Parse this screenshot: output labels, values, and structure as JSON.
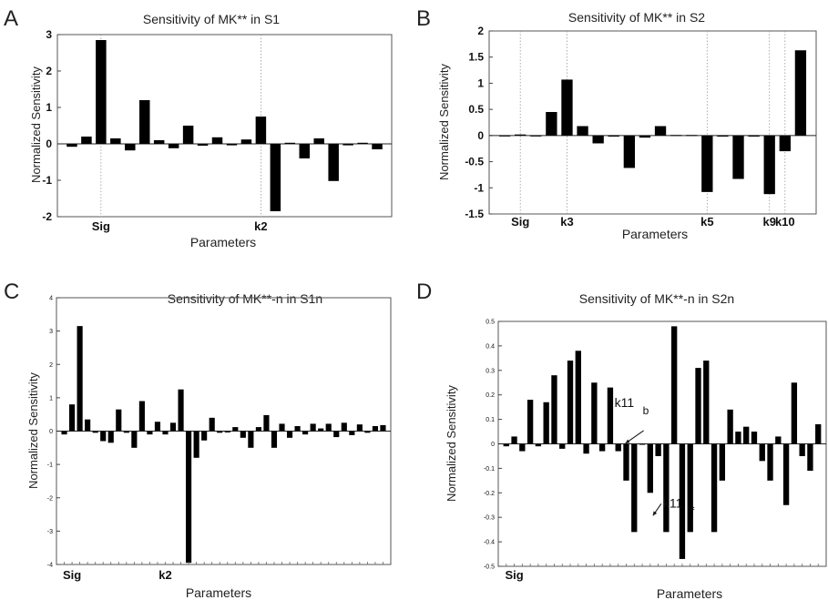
{
  "chart_data": [
    {
      "panel": "A",
      "type": "bar",
      "title": "Sensitivity of MK** in S1",
      "ylabel": "Normalized Sensitivity",
      "xlabel": "Parameters",
      "ylim": [
        -2,
        3
      ],
      "yticks": [
        "-2",
        "-1",
        "0",
        "1",
        "2",
        "3"
      ],
      "category_labels": [
        {
          "label": "Sig",
          "index": 2
        },
        {
          "label": "k2",
          "index": 13
        }
      ],
      "values": [
        -0.08,
        0.2,
        2.85,
        0.15,
        -0.18,
        1.2,
        0.1,
        -0.12,
        0.5,
        -0.05,
        0.18,
        -0.04,
        0.12,
        0.75,
        -1.85,
        0.03,
        -0.4,
        0.15,
        -1.02,
        -0.04,
        0.03,
        -0.15
      ]
    },
    {
      "panel": "B",
      "type": "bar",
      "title": "Sensitivity of MK** in S2",
      "ylabel": "Normalized Sensitivity",
      "xlabel": "Parameters",
      "ylim": [
        -1.5,
        2
      ],
      "yticks": [
        "-1.5",
        "-1",
        "-0.5",
        "0",
        "0.5",
        "1",
        "1.5",
        "2"
      ],
      "category_labels": [
        {
          "label": "Sig",
          "index": 1
        },
        {
          "label": "k3",
          "index": 4
        },
        {
          "label": "k5",
          "index": 13
        },
        {
          "label": "k9",
          "index": 17
        },
        {
          "label": "k10",
          "index": 18
        }
      ],
      "values": [
        0.0,
        0.02,
        0.0,
        0.45,
        1.07,
        0.18,
        -0.15,
        -0.02,
        -0.62,
        -0.04,
        0.18,
        0.01,
        0.01,
        -1.08,
        -0.02,
        -0.83,
        -0.02,
        -1.12,
        -0.3,
        1.63
      ]
    },
    {
      "panel": "C",
      "type": "bar",
      "title": "Sensitivity of MK**-n  in S1n",
      "ylabel": "Normalized Sensitivity",
      "xlabel": "Parameters",
      "ylim": [
        -4,
        4
      ],
      "yticks": [
        "-4",
        "-3",
        "-2",
        "-1",
        "0",
        "1",
        "2",
        "3",
        "4"
      ],
      "category_labels": [
        {
          "label": "Sig",
          "index": 1
        },
        {
          "label": "k2",
          "index": 13
        }
      ],
      "values": [
        -0.1,
        0.8,
        3.15,
        0.35,
        -0.05,
        -0.3,
        -0.35,
        0.65,
        -0.05,
        -0.5,
        0.9,
        -0.1,
        0.28,
        -0.1,
        0.25,
        1.25,
        -3.95,
        -0.8,
        -0.28,
        0.4,
        -0.05,
        -0.04,
        0.12,
        -0.2,
        -0.5,
        0.12,
        0.48,
        -0.5,
        0.22,
        -0.2,
        0.15,
        -0.1,
        0.22,
        0.08,
        0.22,
        -0.18,
        0.25,
        -0.12,
        0.2,
        -0.05,
        0.15,
        0.18
      ]
    },
    {
      "panel": "D",
      "type": "bar",
      "title": "Sensitivity of MK**-n in S2n",
      "ylabel": "Normalized Sensitivity",
      "xlabel": "Parameters",
      "ylim": [
        -0.5,
        0.5
      ],
      "yticks": [
        "-0.5",
        "-0.4",
        "-0.3",
        "-0.2",
        "-0.1",
        "0",
        "0.1",
        "0.2",
        "0.3",
        "0.4",
        "0.5"
      ],
      "category_labels": [
        {
          "label": "Sig",
          "index": 1
        }
      ],
      "annotations": [
        {
          "text": "k11",
          "sub": "f",
          "target_index": 18
        },
        {
          "text": "k11",
          "sub": "b",
          "target_index": 19
        }
      ],
      "values": [
        -0.01,
        0.03,
        -0.03,
        0.18,
        -0.01,
        0.17,
        0.28,
        -0.02,
        0.34,
        0.38,
        -0.04,
        0.25,
        -0.03,
        0.23,
        -0.03,
        -0.15,
        -0.36,
        0.0,
        -0.2,
        -0.05,
        -0.36,
        0.48,
        -0.47,
        -0.36,
        0.31,
        0.34,
        -0.36,
        -0.15,
        0.14,
        0.05,
        0.07,
        0.05,
        -0.07,
        -0.15,
        0.03,
        -0.25,
        0.25,
        -0.05,
        -0.11,
        0.08
      ]
    }
  ]
}
